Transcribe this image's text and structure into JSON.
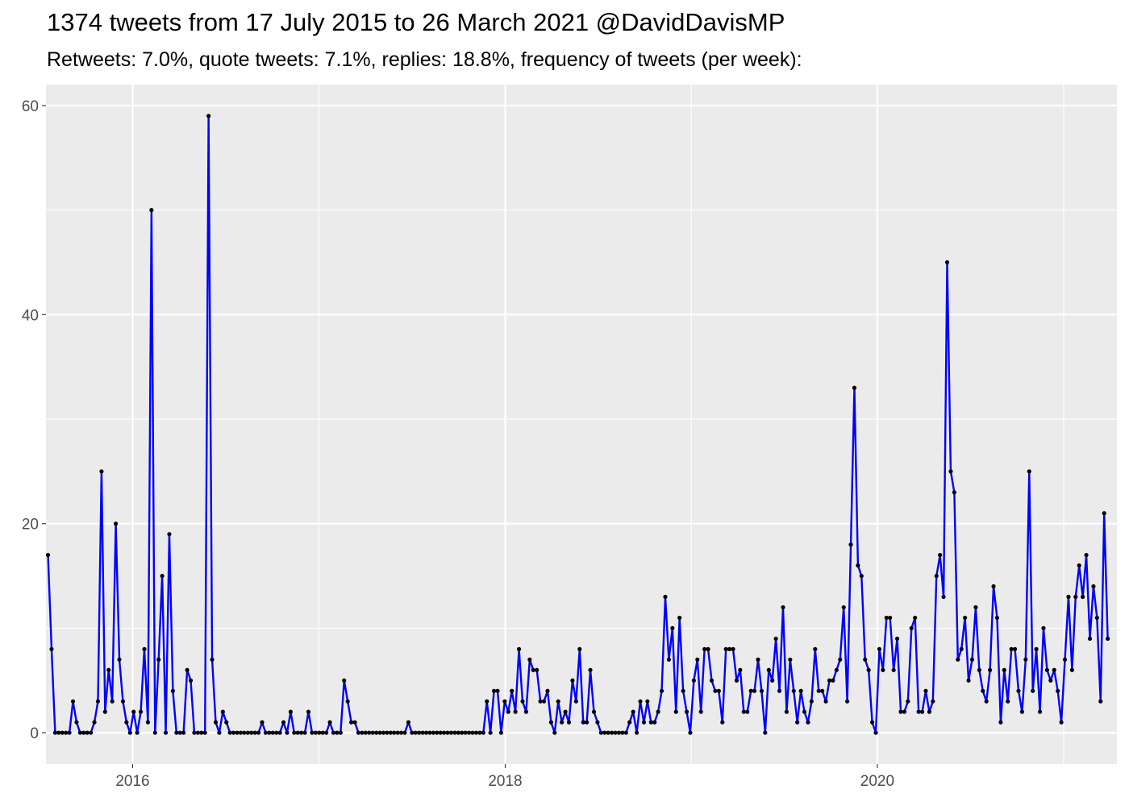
{
  "chart_data": {
    "type": "line",
    "title": "1374 tweets from 17 July 2015 to 26 March 2021 @DavidDavisMP",
    "subtitle": "Retweets: 7.0%, quote tweets: 7.1%, replies: 18.8%, frequency of tweets (per week):",
    "xlabel": "",
    "ylabel": "",
    "x_range": [
      "2015-07-15",
      "2021-04-15"
    ],
    "ylim": [
      -3,
      62
    ],
    "yticks": [
      0,
      20,
      40,
      60
    ],
    "xticks": [
      "2016-01-01",
      "2018-01-01",
      "2020-01-01"
    ],
    "xtick_labels": [
      "2016",
      "2018",
      "2020"
    ],
    "grid": true,
    "legend": "none",
    "line_color": "#0000ff",
    "point_color": "#000000",
    "panel_color": "#ebebeb",
    "grid_color": "#ffffff",
    "series": [
      {
        "x": [
          "2015-07-19",
          "2015-07-26",
          "2015-08-02",
          "2015-08-09",
          "2015-08-16",
          "2015-08-23",
          "2015-08-30",
          "2015-09-06",
          "2015-09-13",
          "2015-09-20",
          "2015-09-27",
          "2015-10-04",
          "2015-10-11",
          "2015-10-18",
          "2015-10-25",
          "2015-11-01",
          "2015-11-08",
          "2015-11-15",
          "2015-11-22",
          "2015-11-29",
          "2015-12-06",
          "2015-12-13",
          "2015-12-20",
          "2015-12-27",
          "2016-01-03",
          "2016-01-10",
          "2016-01-17",
          "2016-01-24",
          "2016-01-31",
          "2016-02-07",
          "2016-02-14",
          "2016-02-21",
          "2016-02-28",
          "2016-03-06",
          "2016-03-13",
          "2016-03-20",
          "2016-03-27",
          "2016-04-03",
          "2016-04-10",
          "2016-04-17",
          "2016-04-24",
          "2016-05-01",
          "2016-05-08",
          "2016-05-15",
          "2016-05-22",
          "2016-05-29",
          "2016-06-05",
          "2016-06-12",
          "2016-06-19",
          "2016-06-26",
          "2016-07-03",
          "2016-07-10",
          "2016-07-17",
          "2016-07-24",
          "2016-07-31",
          "2016-08-07",
          "2016-08-14",
          "2016-08-21",
          "2016-08-28",
          "2016-09-04",
          "2016-09-11",
          "2016-09-18",
          "2016-09-25",
          "2016-10-02",
          "2016-10-09",
          "2016-10-16",
          "2016-10-23",
          "2016-10-30",
          "2016-11-06",
          "2016-11-13",
          "2016-11-20",
          "2016-11-27",
          "2016-12-04",
          "2016-12-11",
          "2016-12-18",
          "2016-12-25",
          "2017-01-01",
          "2017-01-08",
          "2017-01-15",
          "2017-01-22",
          "2017-01-29",
          "2017-02-05",
          "2017-02-12",
          "2017-02-19",
          "2017-02-26",
          "2017-03-05",
          "2017-03-12",
          "2017-03-19",
          "2017-03-26",
          "2017-04-02",
          "2017-04-09",
          "2017-04-16",
          "2017-04-23",
          "2017-04-30",
          "2017-05-07",
          "2017-05-14",
          "2017-05-21",
          "2017-05-28",
          "2017-06-04",
          "2017-06-11",
          "2017-06-18",
          "2017-06-25",
          "2017-07-02",
          "2017-07-09",
          "2017-07-16",
          "2017-07-23",
          "2017-07-30",
          "2017-08-06",
          "2017-08-13",
          "2017-08-20",
          "2017-08-27",
          "2017-09-03",
          "2017-09-10",
          "2017-09-17",
          "2017-09-24",
          "2017-10-01",
          "2017-10-08",
          "2017-10-15",
          "2017-10-22",
          "2017-10-29",
          "2017-11-05",
          "2017-11-12",
          "2017-11-19",
          "2017-11-26",
          "2017-12-03",
          "2017-12-10",
          "2017-12-17",
          "2017-12-24",
          "2017-12-31",
          "2018-01-07",
          "2018-01-14",
          "2018-01-21",
          "2018-01-28",
          "2018-02-04",
          "2018-02-11",
          "2018-02-18",
          "2018-02-25",
          "2018-03-04",
          "2018-03-11",
          "2018-03-18",
          "2018-03-25",
          "2018-04-01",
          "2018-04-08",
          "2018-04-15",
          "2018-04-22",
          "2018-04-29",
          "2018-05-06",
          "2018-05-13",
          "2018-05-20",
          "2018-05-27",
          "2018-06-03",
          "2018-06-10",
          "2018-06-17",
          "2018-06-24",
          "2018-07-01",
          "2018-07-08",
          "2018-07-15",
          "2018-07-22",
          "2018-07-29",
          "2018-08-05",
          "2018-08-12",
          "2018-08-19",
          "2018-08-26",
          "2018-09-02",
          "2018-09-09",
          "2018-09-16",
          "2018-09-23",
          "2018-09-30",
          "2018-10-07",
          "2018-10-14",
          "2018-10-21",
          "2018-10-28",
          "2018-11-04",
          "2018-11-11",
          "2018-11-18",
          "2018-11-25",
          "2018-12-02",
          "2018-12-09",
          "2018-12-16",
          "2018-12-23",
          "2018-12-30",
          "2019-01-06",
          "2019-01-13",
          "2019-01-20",
          "2019-01-27",
          "2019-02-03",
          "2019-02-10",
          "2019-02-17",
          "2019-02-24",
          "2019-03-03",
          "2019-03-10",
          "2019-03-17",
          "2019-03-24",
          "2019-03-31",
          "2019-04-07",
          "2019-04-14",
          "2019-04-21",
          "2019-04-28",
          "2019-05-05",
          "2019-05-12",
          "2019-05-19",
          "2019-05-26",
          "2019-06-02",
          "2019-06-09",
          "2019-06-16",
          "2019-06-23",
          "2019-06-30",
          "2019-07-07",
          "2019-07-14",
          "2019-07-21",
          "2019-07-28",
          "2019-08-04",
          "2019-08-11",
          "2019-08-18",
          "2019-08-25",
          "2019-09-01",
          "2019-09-08",
          "2019-09-15",
          "2019-09-22",
          "2019-09-29",
          "2019-10-06",
          "2019-10-13",
          "2019-10-20",
          "2019-10-27",
          "2019-11-03",
          "2019-11-10",
          "2019-11-17",
          "2019-11-24",
          "2019-12-01",
          "2019-12-08",
          "2019-12-15",
          "2019-12-22",
          "2019-12-29",
          "2020-01-05",
          "2020-01-12",
          "2020-01-19",
          "2020-01-26",
          "2020-02-02",
          "2020-02-09",
          "2020-02-16",
          "2020-02-23",
          "2020-03-01",
          "2020-03-08",
          "2020-03-15",
          "2020-03-22",
          "2020-03-29",
          "2020-04-05",
          "2020-04-12",
          "2020-04-19",
          "2020-04-26",
          "2020-05-03",
          "2020-05-10",
          "2020-05-17",
          "2020-05-24",
          "2020-05-31",
          "2020-06-07",
          "2020-06-14",
          "2020-06-21",
          "2020-06-28",
          "2020-07-05",
          "2020-07-12",
          "2020-07-19",
          "2020-07-26",
          "2020-08-02",
          "2020-08-09",
          "2020-08-16",
          "2020-08-23",
          "2020-08-30",
          "2020-09-06",
          "2020-09-13",
          "2020-09-20",
          "2020-09-27",
          "2020-10-04",
          "2020-10-11",
          "2020-10-18",
          "2020-10-25",
          "2020-11-01",
          "2020-11-08",
          "2020-11-15",
          "2020-11-22",
          "2020-11-29",
          "2020-12-06",
          "2020-12-13",
          "2020-12-20",
          "2020-12-27",
          "2021-01-03",
          "2021-01-10",
          "2021-01-17",
          "2021-01-24",
          "2021-01-31",
          "2021-02-07",
          "2021-02-14",
          "2021-02-21",
          "2021-02-28",
          "2021-03-07",
          "2021-03-14",
          "2021-03-21",
          "2021-03-28"
        ],
        "values": [
          17,
          8,
          0,
          0,
          0,
          0,
          0,
          3,
          1,
          0,
          0,
          0,
          0,
          1,
          3,
          25,
          2,
          6,
          3,
          20,
          7,
          3,
          1,
          0,
          2,
          0,
          2,
          8,
          1,
          50,
          0,
          7,
          15,
          0,
          19,
          4,
          0,
          0,
          0,
          6,
          5,
          0,
          0,
          0,
          0,
          59,
          7,
          1,
          0,
          2,
          1,
          0,
          0,
          0,
          0,
          0,
          0,
          0,
          0,
          0,
          1,
          0,
          0,
          0,
          0,
          0,
          1,
          0,
          2,
          0,
          0,
          0,
          0,
          2,
          0,
          0,
          0,
          0,
          0,
          1,
          0,
          0,
          0,
          5,
          3,
          1,
          1,
          0,
          0,
          0,
          0,
          0,
          0,
          0,
          0,
          0,
          0,
          0,
          0,
          0,
          0,
          1,
          0,
          0,
          0,
          0,
          0,
          0,
          0,
          0,
          0,
          0,
          0,
          0,
          0,
          0,
          0,
          0,
          0,
          0,
          0,
          0,
          0,
          3,
          0,
          4,
          4,
          0,
          3,
          2,
          4,
          2,
          8,
          3,
          2,
          7,
          6,
          6,
          3,
          3,
          4,
          1,
          0,
          3,
          1,
          2,
          1,
          5,
          3,
          8,
          1,
          1,
          6,
          2,
          1,
          0,
          0,
          0,
          0,
          0,
          0,
          0,
          0,
          1,
          2,
          0,
          3,
          1,
          3,
          1,
          1,
          2,
          4,
          13,
          7,
          10,
          2,
          11,
          4,
          2,
          0,
          5,
          7,
          2,
          8,
          8,
          5,
          4,
          4,
          1,
          8,
          8,
          8,
          5,
          6,
          2,
          2,
          4,
          4,
          7,
          4,
          0,
          6,
          5,
          9,
          4,
          12,
          2,
          7,
          4,
          1,
          4,
          2,
          1,
          3,
          8,
          4,
          4,
          3,
          5,
          5,
          6,
          7,
          12,
          3,
          18,
          33,
          16,
          15,
          7,
          6,
          1,
          0,
          8,
          6,
          11,
          11,
          6,
          9,
          2,
          2,
          3,
          10,
          11,
          2,
          2,
          4,
          2,
          3,
          15,
          17,
          13,
          45,
          25,
          23,
          7,
          8,
          11,
          5,
          7,
          12,
          6,
          4,
          3,
          6,
          14,
          11,
          1,
          6,
          3,
          8,
          8,
          4,
          2,
          7,
          25,
          4,
          8,
          2,
          10,
          6,
          5,
          6,
          4,
          1,
          7,
          13,
          6,
          13,
          16,
          13,
          17,
          9,
          14,
          11,
          3,
          21,
          9
        ]
      }
    ]
  }
}
